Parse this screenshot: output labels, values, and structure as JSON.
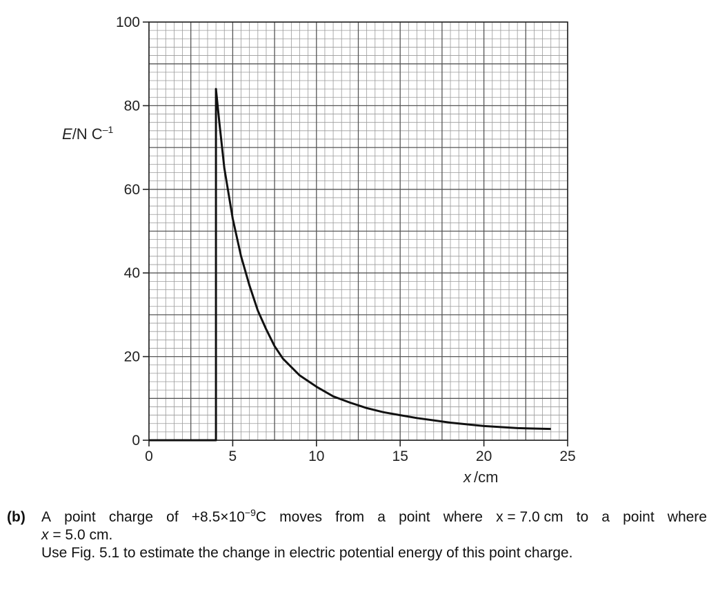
{
  "chart_data": {
    "type": "line",
    "title": "",
    "xlabel_var": "x",
    "xlabel_unit": "/cm",
    "ylabel_var": "E",
    "ylabel_unit": "/N C",
    "ylabel_exp": "–1",
    "xlim": [
      0,
      25
    ],
    "ylim": [
      0,
      100
    ],
    "x_ticks": [
      0,
      5,
      10,
      15,
      20,
      25
    ],
    "y_ticks": [
      0,
      20,
      40,
      60,
      80,
      100
    ],
    "x_ticks_labels": [
      "0",
      "5",
      "10",
      "15",
      "20",
      "25"
    ],
    "y_ticks_labels": [
      "0",
      "20",
      "40",
      "60",
      "80",
      "100"
    ],
    "grid": true,
    "series": [
      {
        "name": "E",
        "x": [
          0,
          4.0,
          4.0,
          4.2,
          4.5,
          5.0,
          5.5,
          6.0,
          6.5,
          7.0,
          7.5,
          8.0,
          9.0,
          10.0,
          11.0,
          12.0,
          13.0,
          14.0,
          15.0,
          16.0,
          18.0,
          20.0,
          22.0,
          24.0
        ],
        "y": [
          0,
          0,
          84,
          76,
          65,
          53,
          44,
          37,
          31,
          26.5,
          22.5,
          19.5,
          15.5,
          12.8,
          10.5,
          9.0,
          7.7,
          6.7,
          6.0,
          5.3,
          4.2,
          3.4,
          2.9,
          2.7
        ]
      }
    ]
  },
  "question": {
    "label": "(b)",
    "line1_words": [
      "A",
      "point",
      "charge",
      "of",
      "+8.5×10",
      "moves",
      "from",
      "a",
      "point",
      "where",
      "x = 7.0 cm",
      "to",
      "a",
      "point",
      "where"
    ],
    "charge_mantissa": "+8.5×10",
    "charge_exp": "−9",
    "charge_unit": "C",
    "line2_var": "x",
    "line2_rest": " = 5.0 cm.",
    "line3": "Use Fig. 5.1 to estimate the change in electric potential energy of this point charge."
  }
}
